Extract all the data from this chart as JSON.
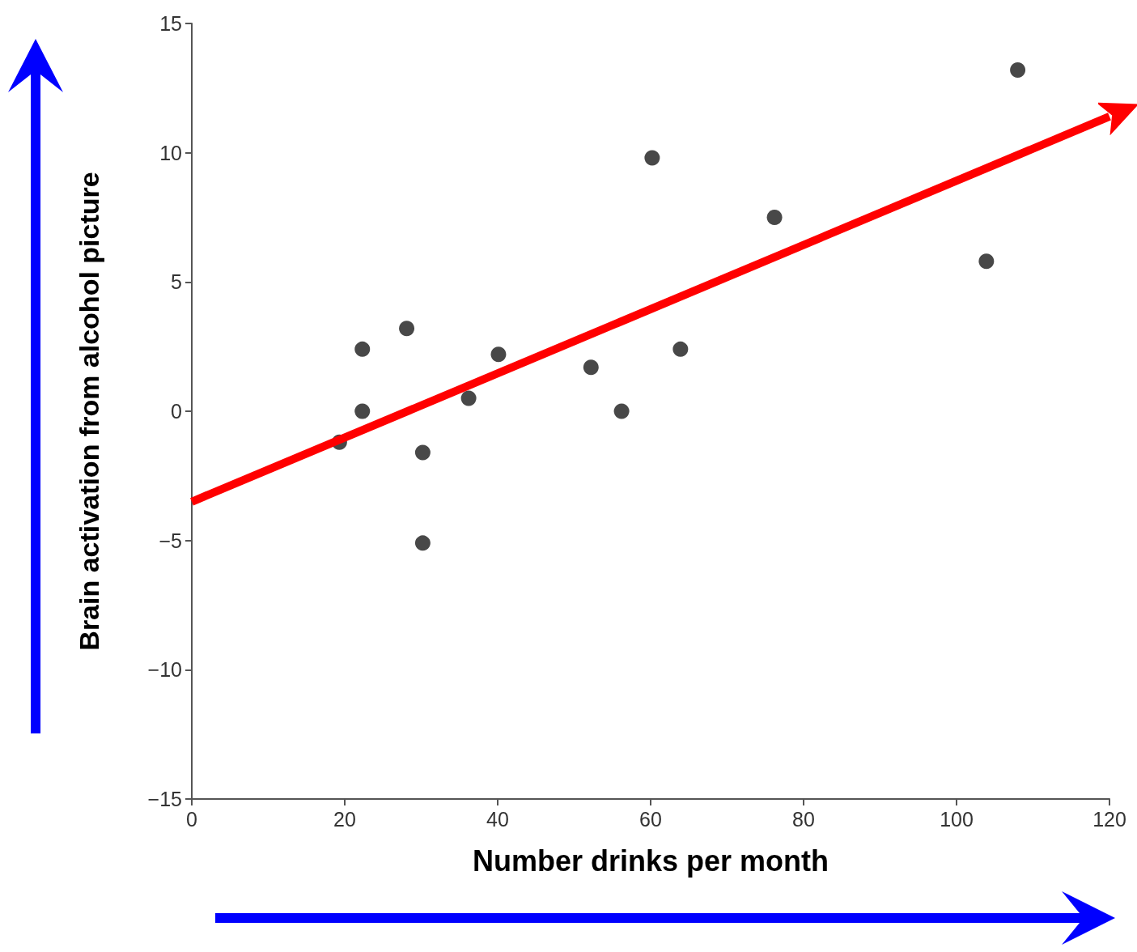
{
  "chart_data": {
    "type": "scatter",
    "xlabel": "Number drinks per month",
    "ylabel": "Brain activation from alcohol picture",
    "xlim": [
      0,
      120
    ],
    "ylim": [
      -15,
      15
    ],
    "xticks": [
      0,
      20,
      40,
      60,
      80,
      100,
      120
    ],
    "yticks": [
      {
        "value": -15,
        "label": "−15"
      },
      {
        "value": -10,
        "label": "−10"
      },
      {
        "value": -5,
        "label": "−5"
      },
      0,
      5,
      10,
      15
    ],
    "marker": "circle",
    "grid": false,
    "series": [
      {
        "color": "#1a1a1a",
        "x": [
          19.3,
          22.3,
          22.3,
          28.1,
          30.2,
          30.2,
          36.2,
          40.1,
          52.2,
          56.2,
          60.2,
          63.9,
          76.2,
          103.9,
          108.0
        ],
        "values": [
          -1.2,
          2.4,
          0,
          3.2,
          -1.6,
          -5.1,
          0.5,
          2.2,
          1.7,
          0,
          9.8,
          2.4,
          7.5,
          5.8,
          13.2
        ]
      },
      {
        "type": "line",
        "marker": "none",
        "color": "#ff0000",
        "x": [
          0,
          120
        ],
        "values": [
          -3.5,
          11.4
        ]
      }
    ]
  }
}
